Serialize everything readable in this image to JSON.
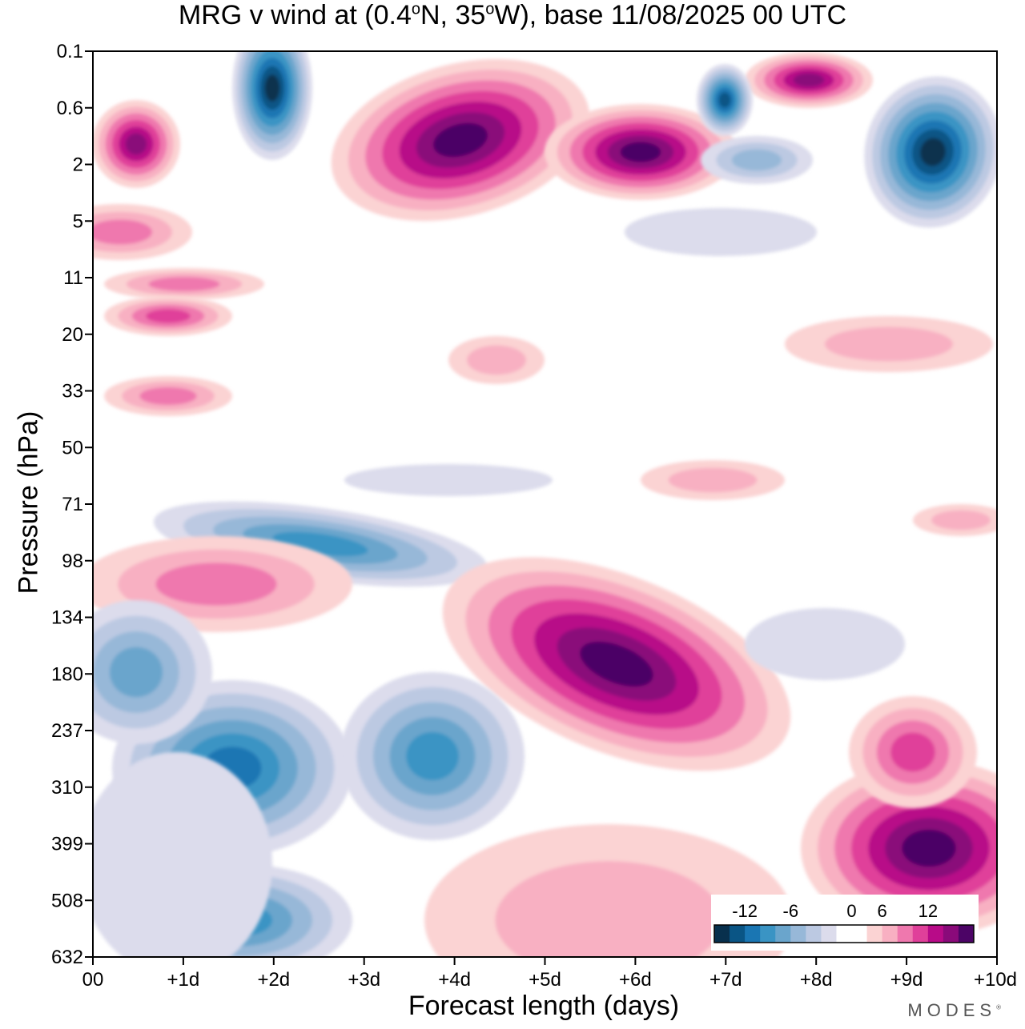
{
  "chart_data": {
    "type": "heatmap",
    "title": "MRG v wind at (0.4°N, 35°W),  base 11/08/2025  00 UTC",
    "title_parts": {
      "a": "MRG v wind at (0.4",
      "deg1": "o",
      "b": "N, 35",
      "deg2": "o",
      "c": "W),  base 11/08/2025  00 UTC"
    },
    "xlabel": "Forecast length (days)",
    "ylabel": "Pressure (hPa)",
    "x_ticks": [
      "00",
      "+1d",
      "+2d",
      "+3d",
      "+4d",
      "+5d",
      "+6d",
      "+7d",
      "+8d",
      "+9d",
      "+10d"
    ],
    "y_ticks": [
      "0.1",
      "0.6",
      "2",
      "5",
      "11",
      "20",
      "33",
      "50",
      "71",
      "98",
      "134",
      "180",
      "237",
      "310",
      "399",
      "508",
      "632"
    ],
    "xlim_days": [
      0,
      10
    ],
    "colorbar": {
      "labels": [
        "-12",
        "-6",
        "0",
        "6",
        "12"
      ],
      "levels": [
        -16,
        -14,
        -12,
        -10,
        -8,
        -6,
        -4,
        -2,
        0,
        2,
        4,
        6,
        8,
        10,
        12,
        14,
        16
      ],
      "colors": [
        "#08304d",
        "#0a5585",
        "#1a76b3",
        "#3a94c4",
        "#6aa5cc",
        "#97b8d8",
        "#bcc9e2",
        "#dcdcec",
        "#ffffff",
        "#ffffff",
        "#fbd3d3",
        "#f8b0c2",
        "#ef78ae",
        "#e0409a",
        "#b80b88",
        "#8a0a7a",
        "#4c0466"
      ]
    },
    "features": [
      {
        "day": 3.9,
        "level": "0.6-2",
        "value": 16
      },
      {
        "day": 6.0,
        "level": "2",
        "value": 16
      },
      {
        "day": 6.0,
        "level": "180",
        "value": 17
      },
      {
        "day": 9.4,
        "level": "399-508",
        "value": 13
      },
      {
        "day": 2.0,
        "level": "0.1",
        "value": -15
      },
      {
        "day": 9.0,
        "level": "1",
        "value": -15
      },
      {
        "day": 7.0,
        "level": "0.6",
        "value": -13
      },
      {
        "day": 1.6,
        "level": "310",
        "value": -12
      },
      {
        "day": 3.6,
        "level": "237-310",
        "value": -10
      },
      {
        "day": 0.6,
        "level": "1-2",
        "value": 12
      },
      {
        "day": 8.0,
        "level": "0.3",
        "value": 12
      },
      {
        "day": 2.2,
        "level": "71-98",
        "value": -10
      },
      {
        "day": 1.5,
        "level": "571",
        "value": -10
      },
      {
        "day": 3.2,
        "level": "134-180",
        "value": -1
      }
    ]
  },
  "branding": {
    "text": "MODES",
    "mark": "®"
  }
}
